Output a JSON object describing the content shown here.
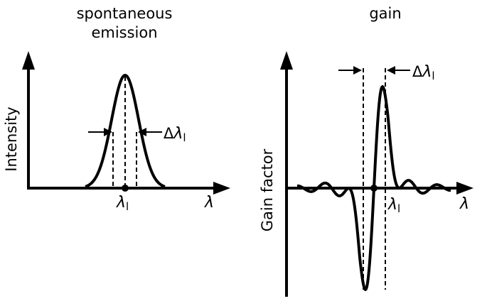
{
  "colors": {
    "ink": "#000000",
    "background": "#ffffff"
  },
  "left_panel": {
    "title_line1": "spontaneous",
    "title_line2": "emission",
    "ylabel": "Intensity",
    "xaxis_symbol": "λ",
    "center_symbol": "λ",
    "center_subscript": "l",
    "width_prefix": "Δ",
    "width_symbol": "λ",
    "width_subscript": "l"
  },
  "right_panel": {
    "title": "gain",
    "ylabel": "Gain factor",
    "xaxis_symbol": "λ",
    "center_symbol": "λ",
    "center_subscript": "l",
    "width_prefix": "Δ",
    "width_symbol": "λ",
    "width_subscript": "l"
  }
}
